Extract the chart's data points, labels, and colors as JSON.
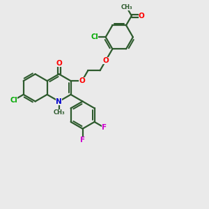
{
  "bg_color": "#eaeaea",
  "bond_color": "#2d5a2d",
  "bond_width": 1.6,
  "atom_colors": {
    "O": "#ff0000",
    "N": "#0000cc",
    "Cl": "#00aa00",
    "F": "#cc00cc",
    "C": "#3a6a3a"
  },
  "font_size": 7.5,
  "figsize": [
    3.0,
    3.0
  ],
  "dpi": 100
}
